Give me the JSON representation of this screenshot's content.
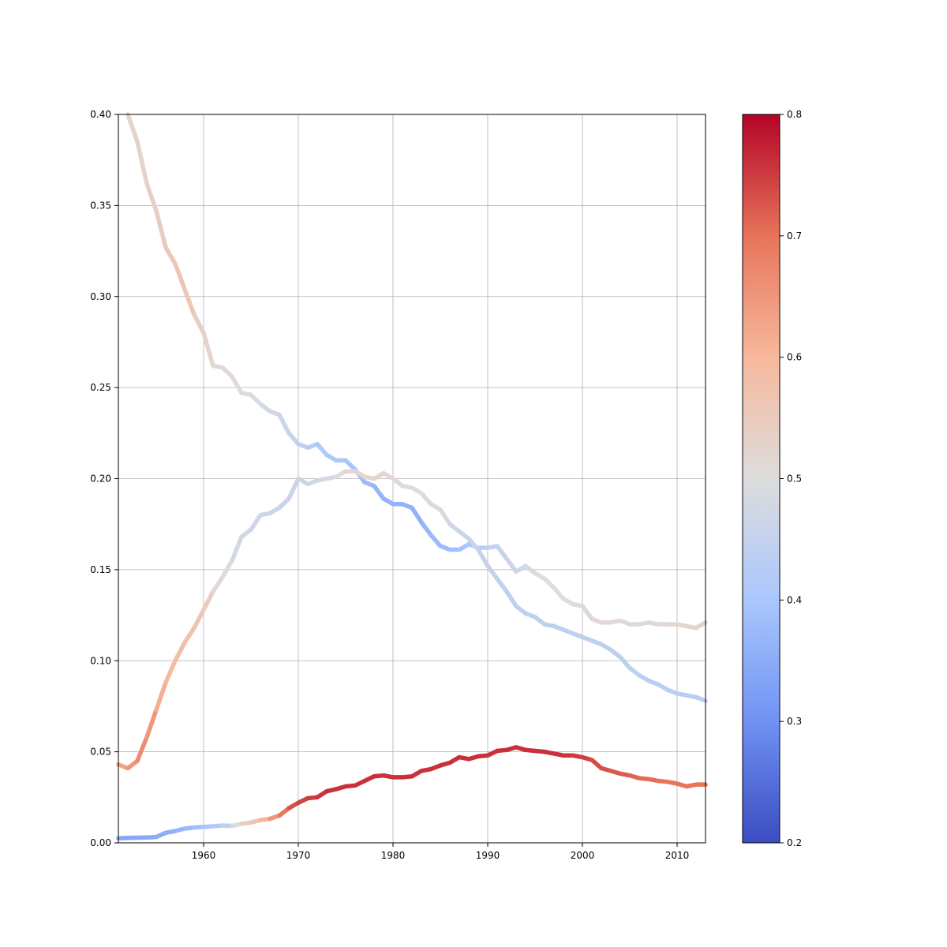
{
  "chart_data": {
    "type": "line",
    "title": "",
    "xlabel": "",
    "ylabel": "",
    "xlim": [
      1951,
      2013
    ],
    "ylim": [
      0,
      0.4
    ],
    "grid": true,
    "x_ticks": [
      1960,
      1970,
      1980,
      1990,
      2000,
      2010
    ],
    "x_tick_labels": [
      "1960",
      "1970",
      "1980",
      "1990",
      "2000",
      "2010"
    ],
    "y_ticks": [
      0,
      0.05,
      0.1,
      0.15,
      0.2,
      0.25,
      0.3,
      0.35,
      0.4
    ],
    "y_tick_labels": [
      "0.00",
      "0.05",
      "0.10",
      "0.15",
      "0.20",
      "0.25",
      "0.30",
      "0.35",
      "0.40"
    ],
    "line_coloring": "each line segment colored by a per-point value mapped through the coolwarm colormap",
    "colorbar": {
      "colormap": "coolwarm",
      "range": [
        0.2,
        0.8
      ],
      "ticks": [
        0.2,
        0.3,
        0.4,
        0.5,
        0.6,
        0.7,
        0.8
      ],
      "tick_labels": [
        "0.2",
        "0.3",
        "0.4",
        "0.5",
        "0.6",
        "0.7",
        "0.8"
      ],
      "stops": [
        "#3b4cc0",
        "#6f92f3",
        "#aac7fd",
        "#dddddd",
        "#f7b89c",
        "#e7745b",
        "#b40426"
      ]
    },
    "series": [
      {
        "x": [
          1952,
          1953,
          1954,
          1955,
          1956,
          1957,
          1958,
          1959,
          1960,
          1961,
          1962,
          1963,
          1964,
          1965,
          1966,
          1967,
          1968,
          1969,
          1970,
          1971,
          1972,
          1973,
          1974,
          1975,
          1976,
          1977,
          1978,
          1979,
          1980,
          1981,
          1982,
          1983,
          1984,
          1985,
          1986,
          1987,
          1988,
          1989,
          1990,
          1991,
          1992,
          1993,
          1994,
          1995,
          1996,
          1997,
          1998,
          1999,
          2000,
          2001,
          2002,
          2003,
          2004,
          2005,
          2006,
          2007,
          2008,
          2009,
          2010,
          2011,
          2012,
          2013
        ],
        "y": [
          0.4,
          0.385,
          0.362,
          0.347,
          0.327,
          0.318,
          0.304,
          0.29,
          0.28,
          0.262,
          0.261,
          0.256,
          0.247,
          0.246,
          0.241,
          0.237,
          0.235,
          0.225,
          0.219,
          0.217,
          0.219,
          0.213,
          0.21,
          0.21,
          0.205,
          0.198,
          0.196,
          0.189,
          0.186,
          0.186,
          0.184,
          0.176,
          0.169,
          0.163,
          0.161,
          0.161,
          0.164,
          0.162,
          0.162,
          0.163,
          0.156,
          0.149,
          0.152,
          0.148,
          0.145,
          0.14,
          0.134,
          0.131,
          0.13,
          0.123,
          0.121,
          0.121,
          0.122,
          0.12,
          0.12,
          0.121,
          0.12,
          0.12,
          0.12,
          0.119,
          0.118,
          0.121
        ],
        "c": [
          0.53,
          0.53,
          0.53,
          0.54,
          0.55,
          0.56,
          0.57,
          0.55,
          0.53,
          0.52,
          0.52,
          0.51,
          0.5,
          0.49,
          0.49,
          0.48,
          0.47,
          0.46,
          0.45,
          0.44,
          0.42,
          0.41,
          0.4,
          0.4,
          0.39,
          0.38,
          0.37,
          0.36,
          0.36,
          0.36,
          0.36,
          0.36,
          0.37,
          0.38,
          0.38,
          0.39,
          0.4,
          0.42,
          0.44,
          0.45,
          0.46,
          0.47,
          0.48,
          0.49,
          0.5,
          0.5,
          0.5,
          0.5,
          0.51,
          0.51,
          0.51,
          0.51,
          0.51,
          0.51,
          0.51,
          0.51,
          0.51,
          0.51,
          0.52,
          0.52,
          0.53,
          0.53
        ]
      },
      {
        "x": [
          1951,
          1952,
          1953,
          1954,
          1955,
          1956,
          1957,
          1958,
          1959,
          1960,
          1961,
          1962,
          1963,
          1964,
          1965,
          1966,
          1967,
          1968,
          1969,
          1970,
          1971,
          1972,
          1973,
          1974,
          1975,
          1976,
          1977,
          1978,
          1979,
          1980,
          1981,
          1982,
          1983,
          1984,
          1985,
          1986,
          1987,
          1988,
          1989,
          1990,
          1991,
          1992,
          1993,
          1994,
          1995,
          1996,
          1997,
          1998,
          1999,
          2000,
          2001,
          2002,
          2003,
          2004,
          2005,
          2006,
          2007,
          2008,
          2009,
          2010,
          2011,
          2012,
          2013
        ],
        "y": [
          0.043,
          0.041,
          0.045,
          0.058,
          0.073,
          0.088,
          0.1,
          0.11,
          0.118,
          0.128,
          0.138,
          0.146,
          0.155,
          0.168,
          0.172,
          0.18,
          0.181,
          0.184,
          0.189,
          0.2,
          0.197,
          0.199,
          0.2,
          0.201,
          0.204,
          0.204,
          0.201,
          0.2,
          0.203,
          0.2,
          0.196,
          0.195,
          0.192,
          0.186,
          0.183,
          0.175,
          0.171,
          0.167,
          0.161,
          0.152,
          0.145,
          0.138,
          0.13,
          0.126,
          0.124,
          0.12,
          0.119,
          0.117,
          0.115,
          0.113,
          0.111,
          0.109,
          0.106,
          0.102,
          0.096,
          0.092,
          0.089,
          0.087,
          0.084,
          0.082,
          0.081,
          0.08,
          0.078
        ],
        "c": [
          0.62,
          0.64,
          0.66,
          0.67,
          0.63,
          0.6,
          0.59,
          0.58,
          0.57,
          0.56,
          0.53,
          0.5,
          0.48,
          0.48,
          0.47,
          0.47,
          0.47,
          0.46,
          0.46,
          0.46,
          0.47,
          0.47,
          0.48,
          0.49,
          0.51,
          0.52,
          0.52,
          0.52,
          0.52,
          0.51,
          0.51,
          0.5,
          0.5,
          0.49,
          0.49,
          0.48,
          0.47,
          0.46,
          0.46,
          0.45,
          0.45,
          0.44,
          0.44,
          0.44,
          0.44,
          0.44,
          0.44,
          0.44,
          0.44,
          0.44,
          0.44,
          0.44,
          0.44,
          0.44,
          0.44,
          0.44,
          0.43,
          0.43,
          0.43,
          0.43,
          0.43,
          0.43,
          0.43
        ]
      },
      {
        "x": [
          1951,
          1952,
          1953,
          1954,
          1955,
          1956,
          1957,
          1958,
          1959,
          1960,
          1961,
          1962,
          1963,
          1964,
          1965,
          1966,
          1967,
          1968,
          1969,
          1970,
          1971,
          1972,
          1973,
          1974,
          1975,
          1976,
          1977,
          1978,
          1979,
          1980,
          1981,
          1982,
          1983,
          1984,
          1985,
          1986,
          1987,
          1988,
          1989,
          1990,
          1991,
          1992,
          1993,
          1994,
          1995,
          1996,
          1997,
          1998,
          1999,
          2000,
          2001,
          2002,
          2003,
          2004,
          2005,
          2006,
          2007,
          2008,
          2009,
          2010,
          2011,
          2012,
          2013
        ],
        "y": [
          0.0025,
          0.0027,
          0.0028,
          0.0029,
          0.0032,
          0.0055,
          0.0065,
          0.0078,
          0.0084,
          0.0088,
          0.0091,
          0.0095,
          0.0093,
          0.0104,
          0.0112,
          0.0125,
          0.0132,
          0.015,
          0.019,
          0.022,
          0.0245,
          0.025,
          0.0283,
          0.0295,
          0.031,
          0.0315,
          0.034,
          0.0365,
          0.037,
          0.036,
          0.036,
          0.0365,
          0.0395,
          0.0405,
          0.0425,
          0.044,
          0.047,
          0.046,
          0.0475,
          0.048,
          0.0505,
          0.051,
          0.0525,
          0.051,
          0.0505,
          0.05,
          0.049,
          0.048,
          0.048,
          0.047,
          0.0455,
          0.041,
          0.0395,
          0.038,
          0.037,
          0.0355,
          0.035,
          0.034,
          0.0335,
          0.0325,
          0.031,
          0.032,
          0.032
        ],
        "c": [
          0.34,
          0.34,
          0.34,
          0.34,
          0.35,
          0.35,
          0.36,
          0.37,
          0.38,
          0.39,
          0.41,
          0.43,
          0.45,
          0.53,
          0.55,
          0.58,
          0.63,
          0.67,
          0.72,
          0.74,
          0.75,
          0.75,
          0.76,
          0.76,
          0.76,
          0.76,
          0.76,
          0.76,
          0.76,
          0.76,
          0.76,
          0.76,
          0.76,
          0.76,
          0.76,
          0.76,
          0.76,
          0.76,
          0.76,
          0.76,
          0.76,
          0.76,
          0.76,
          0.76,
          0.76,
          0.76,
          0.76,
          0.76,
          0.75,
          0.75,
          0.74,
          0.73,
          0.73,
          0.72,
          0.72,
          0.71,
          0.71,
          0.7,
          0.7,
          0.7,
          0.7,
          0.7,
          0.7
        ]
      }
    ]
  }
}
